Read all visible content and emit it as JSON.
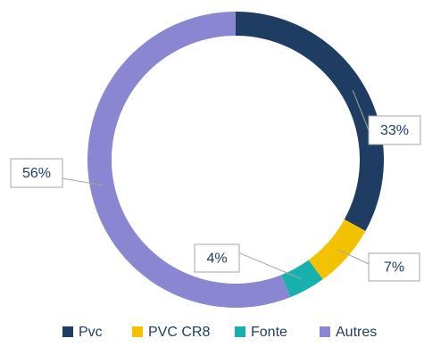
{
  "chart_data": {
    "type": "donut",
    "categories": [
      "Pvc",
      "PVC CR8",
      "Fonte",
      "Autres"
    ],
    "values": [
      33,
      7,
      4,
      56
    ],
    "value_labels": [
      "33%",
      "7%",
      "4%",
      "56%"
    ],
    "colors": [
      "#1f3d63",
      "#f2c200",
      "#17b1ad",
      "#8a86d1"
    ],
    "legend": "bottom"
  }
}
